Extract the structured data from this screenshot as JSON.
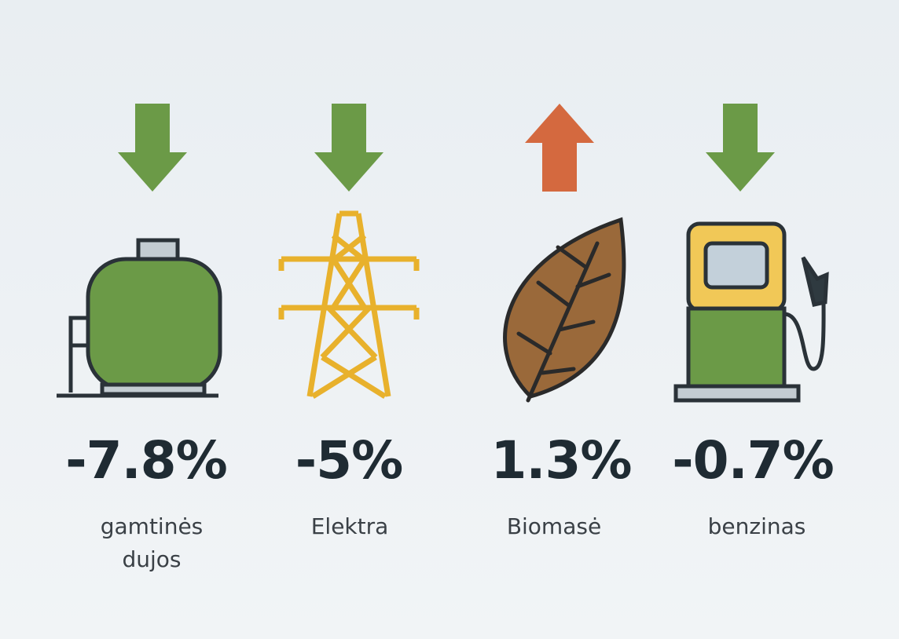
{
  "items": [
    {
      "value": "-7.8%",
      "label": "gamtinės dujos"
    },
    {
      "value": "-5%",
      "label": "Elektra"
    },
    {
      "value": "1.3%",
      "label": "Biomasė"
    },
    {
      "value": "-0.7%",
      "label": "benzinas"
    }
  ]
}
